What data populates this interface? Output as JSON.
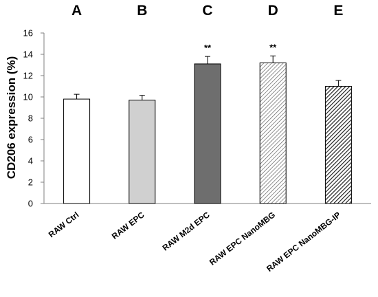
{
  "chart_data": {
    "type": "bar",
    "ylabel": "CD206 expression (%)",
    "xlabel": "",
    "ylim": [
      0,
      16
    ],
    "yticks": [
      0,
      2,
      4,
      6,
      8,
      10,
      12,
      14,
      16
    ],
    "grid": false,
    "categories": [
      "RAW Ctrl",
      "RAW EPC",
      "RAW M2d EPC",
      "RAW EPC NanoMBG",
      "RAW EPC NanoMBG-IP"
    ],
    "group_letters": [
      "A",
      "B",
      "C",
      "D",
      "E"
    ],
    "values": [
      9.8,
      9.7,
      13.1,
      13.2,
      11.0
    ],
    "errors": [
      0.45,
      0.45,
      0.7,
      0.65,
      0.55
    ],
    "significance": [
      "",
      "",
      "**",
      "**",
      ""
    ],
    "fills": [
      {
        "color": "#ffffff",
        "pattern": "none"
      },
      {
        "color": "#d0d0d0",
        "pattern": "none"
      },
      {
        "color": "#6e6e6e",
        "pattern": "none"
      },
      {
        "color": "#ffffff",
        "pattern": "light-diagonal-hatch"
      },
      {
        "color": "#ffffff",
        "pattern": "dense-diagonal-hatch"
      }
    ]
  }
}
